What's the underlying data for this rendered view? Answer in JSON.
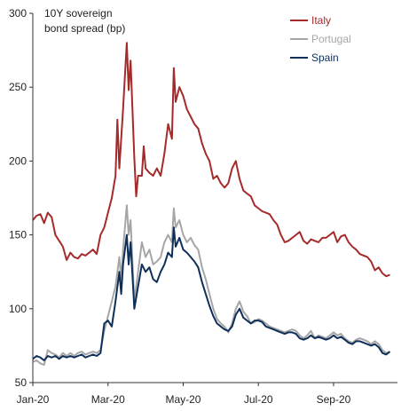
{
  "chart_data": {
    "type": "line",
    "title": "10Y sovereign bond spread (bp)",
    "ylim": [
      50,
      300
    ],
    "yticks": [
      50,
      100,
      150,
      200,
      250,
      300
    ],
    "xticks": [
      {
        "label": "Jan-20",
        "pos": 0
      },
      {
        "label": "Mar-20",
        "pos": 2
      },
      {
        "label": "May-20",
        "pos": 4
      },
      {
        "label": "Jul-20",
        "pos": 6
      },
      {
        "label": "Sep-20",
        "pos": 8
      }
    ],
    "xlim": [
      0,
      9.7
    ],
    "legend_position": "top-right",
    "series": [
      {
        "name": "Italy",
        "color": "#A52A2A",
        "points": [
          [
            0,
            160
          ],
          [
            0.1,
            163
          ],
          [
            0.2,
            164
          ],
          [
            0.3,
            158
          ],
          [
            0.4,
            165
          ],
          [
            0.5,
            162
          ],
          [
            0.6,
            150
          ],
          [
            0.7,
            146
          ],
          [
            0.8,
            142
          ],
          [
            0.9,
            133
          ],
          [
            1.0,
            138
          ],
          [
            1.1,
            135
          ],
          [
            1.2,
            134
          ],
          [
            1.3,
            137
          ],
          [
            1.4,
            136
          ],
          [
            1.5,
            138
          ],
          [
            1.6,
            140
          ],
          [
            1.7,
            137
          ],
          [
            1.8,
            150
          ],
          [
            1.9,
            155
          ],
          [
            2.0,
            165
          ],
          [
            2.1,
            175
          ],
          [
            2.2,
            190
          ],
          [
            2.25,
            228
          ],
          [
            2.3,
            195
          ],
          [
            2.35,
            215
          ],
          [
            2.4,
            235
          ],
          [
            2.5,
            280
          ],
          [
            2.55,
            248
          ],
          [
            2.6,
            268
          ],
          [
            2.7,
            202
          ],
          [
            2.75,
            176
          ],
          [
            2.8,
            190
          ],
          [
            2.9,
            190
          ],
          [
            2.95,
            210
          ],
          [
            3.0,
            195
          ],
          [
            3.1,
            192
          ],
          [
            3.2,
            190
          ],
          [
            3.3,
            195
          ],
          [
            3.4,
            190
          ],
          [
            3.5,
            205
          ],
          [
            3.6,
            225
          ],
          [
            3.7,
            215
          ],
          [
            3.75,
            263
          ],
          [
            3.8,
            240
          ],
          [
            3.9,
            250
          ],
          [
            4.0,
            244
          ],
          [
            4.1,
            235
          ],
          [
            4.2,
            230
          ],
          [
            4.3,
            225
          ],
          [
            4.4,
            222
          ],
          [
            4.5,
            212
          ],
          [
            4.6,
            205
          ],
          [
            4.7,
            200
          ],
          [
            4.8,
            188
          ],
          [
            4.9,
            190
          ],
          [
            5.0,
            185
          ],
          [
            5.1,
            182
          ],
          [
            5.2,
            185
          ],
          [
            5.3,
            195
          ],
          [
            5.4,
            200
          ],
          [
            5.5,
            188
          ],
          [
            5.6,
            180
          ],
          [
            5.7,
            178
          ],
          [
            5.8,
            176
          ],
          [
            5.9,
            170
          ],
          [
            6.0,
            168
          ],
          [
            6.1,
            166
          ],
          [
            6.2,
            165
          ],
          [
            6.3,
            164
          ],
          [
            6.4,
            160
          ],
          [
            6.5,
            157
          ],
          [
            6.6,
            150
          ],
          [
            6.7,
            145
          ],
          [
            6.8,
            146
          ],
          [
            6.9,
            148
          ],
          [
            7.0,
            150
          ],
          [
            7.1,
            152
          ],
          [
            7.2,
            146
          ],
          [
            7.3,
            144
          ],
          [
            7.4,
            147
          ],
          [
            7.5,
            146
          ],
          [
            7.6,
            145
          ],
          [
            7.7,
            148
          ],
          [
            7.8,
            148
          ],
          [
            7.9,
            150
          ],
          [
            8.0,
            152
          ],
          [
            8.1,
            145
          ],
          [
            8.2,
            149
          ],
          [
            8.3,
            150
          ],
          [
            8.4,
            145
          ],
          [
            8.5,
            142
          ],
          [
            8.6,
            140
          ],
          [
            8.7,
            137
          ],
          [
            8.8,
            136
          ],
          [
            8.9,
            135
          ],
          [
            9.0,
            132
          ],
          [
            9.1,
            126
          ],
          [
            9.2,
            128
          ],
          [
            9.3,
            124
          ],
          [
            9.4,
            122
          ],
          [
            9.5,
            123
          ]
        ]
      },
      {
        "name": "Portugal",
        "color": "#A6A6A6",
        "points": [
          [
            0,
            64
          ],
          [
            0.1,
            65
          ],
          [
            0.2,
            63
          ],
          [
            0.3,
            62
          ],
          [
            0.4,
            72
          ],
          [
            0.5,
            70
          ],
          [
            0.6,
            69
          ],
          [
            0.7,
            67
          ],
          [
            0.8,
            70
          ],
          [
            0.9,
            68
          ],
          [
            1.0,
            70
          ],
          [
            1.1,
            68
          ],
          [
            1.2,
            70
          ],
          [
            1.3,
            71
          ],
          [
            1.4,
            69
          ],
          [
            1.5,
            70
          ],
          [
            1.6,
            71
          ],
          [
            1.7,
            70
          ],
          [
            1.8,
            72
          ],
          [
            1.9,
            85
          ],
          [
            2.0,
            95
          ],
          [
            2.1,
            105
          ],
          [
            2.2,
            115
          ],
          [
            2.3,
            135
          ],
          [
            2.35,
            120
          ],
          [
            2.4,
            140
          ],
          [
            2.5,
            170
          ],
          [
            2.55,
            150
          ],
          [
            2.6,
            160
          ],
          [
            2.7,
            105
          ],
          [
            2.8,
            125
          ],
          [
            2.9,
            145
          ],
          [
            3.0,
            135
          ],
          [
            3.1,
            140
          ],
          [
            3.2,
            130
          ],
          [
            3.3,
            132
          ],
          [
            3.4,
            135
          ],
          [
            3.5,
            145
          ],
          [
            3.6,
            150
          ],
          [
            3.7,
            145
          ],
          [
            3.75,
            168
          ],
          [
            3.8,
            155
          ],
          [
            3.9,
            160
          ],
          [
            4.0,
            150
          ],
          [
            4.1,
            145
          ],
          [
            4.2,
            148
          ],
          [
            4.3,
            143
          ],
          [
            4.4,
            140
          ],
          [
            4.5,
            128
          ],
          [
            4.6,
            120
          ],
          [
            4.7,
            110
          ],
          [
            4.8,
            100
          ],
          [
            4.9,
            93
          ],
          [
            5.0,
            90
          ],
          [
            5.1,
            88
          ],
          [
            5.2,
            84
          ],
          [
            5.3,
            90
          ],
          [
            5.4,
            100
          ],
          [
            5.5,
            105
          ],
          [
            5.6,
            98
          ],
          [
            5.7,
            95
          ],
          [
            5.8,
            90
          ],
          [
            5.9,
            91
          ],
          [
            6.0,
            93
          ],
          [
            6.1,
            92
          ],
          [
            6.2,
            90
          ],
          [
            6.3,
            88
          ],
          [
            6.4,
            87
          ],
          [
            6.5,
            86
          ],
          [
            6.6,
            85
          ],
          [
            6.7,
            84
          ],
          [
            6.8,
            85
          ],
          [
            6.9,
            86
          ],
          [
            7.0,
            85
          ],
          [
            7.1,
            82
          ],
          [
            7.2,
            80
          ],
          [
            7.3,
            82
          ],
          [
            7.4,
            85
          ],
          [
            7.5,
            80
          ],
          [
            7.6,
            82
          ],
          [
            7.7,
            81
          ],
          [
            7.8,
            80
          ],
          [
            7.9,
            82
          ],
          [
            8.0,
            84
          ],
          [
            8.1,
            82
          ],
          [
            8.2,
            83
          ],
          [
            8.3,
            80
          ],
          [
            8.4,
            78
          ],
          [
            8.5,
            77
          ],
          [
            8.6,
            79
          ],
          [
            8.7,
            80
          ],
          [
            8.8,
            79
          ],
          [
            8.9,
            78
          ],
          [
            9.0,
            76
          ],
          [
            9.1,
            78
          ],
          [
            9.2,
            76
          ],
          [
            9.3,
            72
          ],
          [
            9.4,
            70
          ],
          [
            9.5,
            71
          ]
        ]
      },
      {
        "name": "Spain",
        "color": "#0E2F5A",
        "points": [
          [
            0,
            66
          ],
          [
            0.1,
            68
          ],
          [
            0.2,
            67
          ],
          [
            0.3,
            65
          ],
          [
            0.4,
            68
          ],
          [
            0.5,
            67
          ],
          [
            0.6,
            68
          ],
          [
            0.7,
            66
          ],
          [
            0.8,
            68
          ],
          [
            0.9,
            67
          ],
          [
            1.0,
            68
          ],
          [
            1.1,
            67
          ],
          [
            1.2,
            68
          ],
          [
            1.3,
            69
          ],
          [
            1.4,
            67
          ],
          [
            1.5,
            68
          ],
          [
            1.6,
            69
          ],
          [
            1.7,
            68
          ],
          [
            1.8,
            70
          ],
          [
            1.9,
            90
          ],
          [
            2.0,
            92
          ],
          [
            2.1,
            88
          ],
          [
            2.2,
            105
          ],
          [
            2.3,
            125
          ],
          [
            2.35,
            110
          ],
          [
            2.4,
            130
          ],
          [
            2.5,
            150
          ],
          [
            2.55,
            130
          ],
          [
            2.6,
            145
          ],
          [
            2.7,
            100
          ],
          [
            2.8,
            115
          ],
          [
            2.9,
            130
          ],
          [
            3.0,
            125
          ],
          [
            3.1,
            128
          ],
          [
            3.2,
            120
          ],
          [
            3.3,
            118
          ],
          [
            3.4,
            125
          ],
          [
            3.5,
            130
          ],
          [
            3.6,
            138
          ],
          [
            3.7,
            135
          ],
          [
            3.75,
            155
          ],
          [
            3.8,
            142
          ],
          [
            3.9,
            148
          ],
          [
            4.0,
            140
          ],
          [
            4.1,
            138
          ],
          [
            4.2,
            135
          ],
          [
            4.3,
            132
          ],
          [
            4.4,
            128
          ],
          [
            4.5,
            118
          ],
          [
            4.6,
            110
          ],
          [
            4.7,
            102
          ],
          [
            4.8,
            95
          ],
          [
            4.9,
            90
          ],
          [
            5.0,
            88
          ],
          [
            5.1,
            86
          ],
          [
            5.2,
            85
          ],
          [
            5.3,
            88
          ],
          [
            5.4,
            96
          ],
          [
            5.5,
            100
          ],
          [
            5.6,
            94
          ],
          [
            5.7,
            92
          ],
          [
            5.8,
            90
          ],
          [
            5.9,
            92
          ],
          [
            6.0,
            92
          ],
          [
            6.1,
            91
          ],
          [
            6.2,
            88
          ],
          [
            6.3,
            87
          ],
          [
            6.4,
            86
          ],
          [
            6.5,
            85
          ],
          [
            6.6,
            84
          ],
          [
            6.7,
            83
          ],
          [
            6.8,
            84
          ],
          [
            6.9,
            84
          ],
          [
            7.0,
            83
          ],
          [
            7.1,
            80
          ],
          [
            7.2,
            79
          ],
          [
            7.3,
            80
          ],
          [
            7.4,
            82
          ],
          [
            7.5,
            80
          ],
          [
            7.6,
            81
          ],
          [
            7.7,
            80
          ],
          [
            7.8,
            79
          ],
          [
            7.9,
            80
          ],
          [
            8.0,
            82
          ],
          [
            8.1,
            80
          ],
          [
            8.2,
            81
          ],
          [
            8.3,
            79
          ],
          [
            8.4,
            77
          ],
          [
            8.5,
            76
          ],
          [
            8.6,
            78
          ],
          [
            8.7,
            78
          ],
          [
            8.8,
            77
          ],
          [
            8.9,
            76
          ],
          [
            9.0,
            75
          ],
          [
            9.1,
            76
          ],
          [
            9.2,
            74
          ],
          [
            9.3,
            70
          ],
          [
            9.4,
            69
          ],
          [
            9.5,
            71
          ]
        ]
      }
    ]
  }
}
